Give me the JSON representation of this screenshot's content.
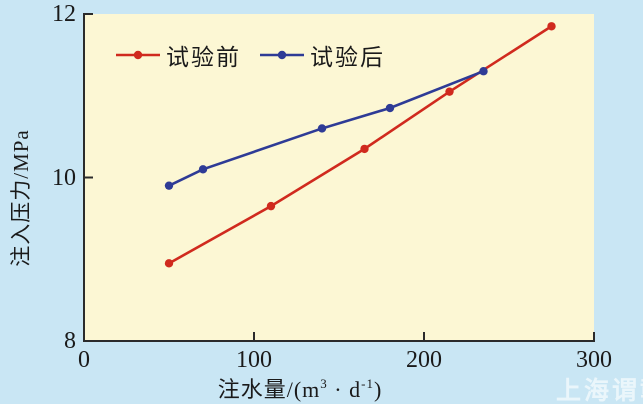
{
  "figure": {
    "background_color": "#c9e6f4",
    "plot_background_color": "#fcf7d4",
    "axis_color": "#2b2b2b",
    "text_color": "#1a1a1a",
    "watermark": "上海谓彰"
  },
  "chart_data": {
    "type": "line",
    "title": "",
    "xlabel": "注水量/(m³·d⁻¹)",
    "ylabel": "注入压力/MPa",
    "xlim": [
      0,
      300
    ],
    "ylim": [
      8,
      12
    ],
    "x_ticks": [
      0,
      100,
      200,
      300
    ],
    "y_ticks": [
      8,
      10,
      12
    ],
    "grid": false,
    "legend_position": "top-inside",
    "series": [
      {
        "name": "试验前",
        "color": "#d02a1e",
        "marker": "circle",
        "points": [
          [
            50,
            8.95
          ],
          [
            110,
            9.65
          ],
          [
            165,
            10.35
          ],
          [
            215,
            11.05
          ],
          [
            275,
            11.85
          ]
        ]
      },
      {
        "name": "试验后",
        "color": "#2e3b96",
        "marker": "circle",
        "points": [
          [
            50,
            9.9
          ],
          [
            70,
            10.1
          ],
          [
            140,
            10.6
          ],
          [
            180,
            10.85
          ],
          [
            235,
            11.3
          ]
        ]
      }
    ]
  },
  "x_axis_label_parts": {
    "prefix": "注水量/(m",
    "sup1": "3",
    "mid": " · d",
    "sup2": "-1",
    "suffix": ")"
  }
}
